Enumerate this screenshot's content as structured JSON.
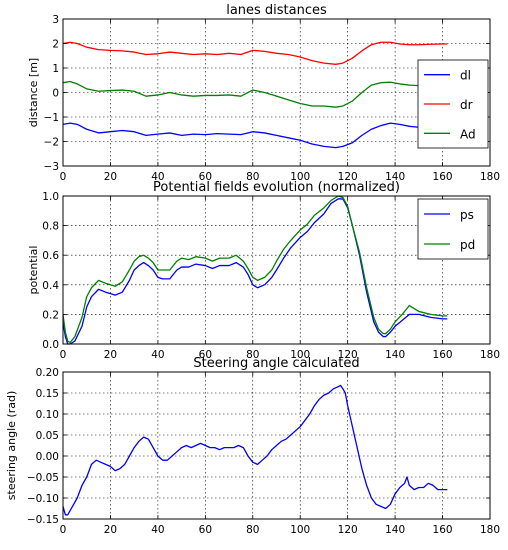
{
  "chart_data": [
    {
      "type": "line",
      "title": "lanes distances",
      "xlabel": "",
      "ylabel": "distance [m]",
      "xlim": [
        0,
        180
      ],
      "ylim": [
        -3,
        3
      ],
      "xticks": [
        0,
        20,
        40,
        60,
        80,
        100,
        120,
        140,
        160,
        180
      ],
      "yticks": [
        -3,
        -2,
        -1,
        0,
        1,
        2,
        3
      ],
      "grid": true,
      "legend": "right",
      "series": [
        {
          "name": "dl",
          "color": "#0000ff",
          "x": [
            0,
            3,
            6,
            10,
            15,
            20,
            25,
            30,
            35,
            40,
            45,
            50,
            55,
            60,
            65,
            70,
            75,
            80,
            85,
            90,
            95,
            100,
            105,
            110,
            115,
            118,
            122,
            126,
            130,
            134,
            138,
            142,
            146,
            150,
            155,
            160,
            162
          ],
          "y": [
            -1.3,
            -1.25,
            -1.3,
            -1.5,
            -1.65,
            -1.6,
            -1.55,
            -1.6,
            -1.75,
            -1.7,
            -1.65,
            -1.75,
            -1.7,
            -1.72,
            -1.68,
            -1.7,
            -1.72,
            -1.6,
            -1.65,
            -1.75,
            -1.85,
            -1.95,
            -2.1,
            -2.2,
            -2.25,
            -2.2,
            -2.05,
            -1.75,
            -1.5,
            -1.35,
            -1.25,
            -1.3,
            -1.38,
            -1.42,
            -1.4,
            -1.38,
            -1.38
          ]
        },
        {
          "name": "dr",
          "color": "#ff0000",
          "x": [
            0,
            3,
            6,
            10,
            15,
            20,
            25,
            30,
            35,
            40,
            45,
            50,
            55,
            60,
            65,
            70,
            75,
            80,
            85,
            90,
            95,
            100,
            105,
            110,
            115,
            118,
            122,
            126,
            130,
            134,
            138,
            142,
            146,
            150,
            155,
            160,
            162
          ],
          "y": [
            2.0,
            2.05,
            2.0,
            1.85,
            1.75,
            1.72,
            1.7,
            1.65,
            1.55,
            1.58,
            1.65,
            1.6,
            1.55,
            1.58,
            1.55,
            1.6,
            1.55,
            1.72,
            1.68,
            1.6,
            1.55,
            1.45,
            1.3,
            1.2,
            1.15,
            1.2,
            1.4,
            1.7,
            1.95,
            2.05,
            2.05,
            1.98,
            1.95,
            1.95,
            1.97,
            1.98,
            1.98
          ]
        },
        {
          "name": "Ad",
          "color": "#008000",
          "x": [
            0,
            3,
            6,
            10,
            15,
            20,
            25,
            30,
            35,
            40,
            45,
            50,
            55,
            60,
            65,
            70,
            75,
            80,
            85,
            90,
            95,
            100,
            105,
            110,
            115,
            118,
            122,
            126,
            130,
            134,
            138,
            142,
            146,
            150,
            155,
            160,
            162
          ],
          "y": [
            0.4,
            0.45,
            0.35,
            0.15,
            0.05,
            0.08,
            0.1,
            0.05,
            -0.15,
            -0.1,
            -0.0,
            -0.1,
            -0.15,
            -0.12,
            -0.12,
            -0.1,
            -0.15,
            0.1,
            0.0,
            -0.15,
            -0.3,
            -0.45,
            -0.55,
            -0.55,
            -0.6,
            -0.55,
            -0.35,
            0.0,
            0.3,
            0.4,
            0.42,
            0.35,
            0.3,
            0.28,
            0.3,
            0.33,
            0.33
          ]
        }
      ]
    },
    {
      "type": "line",
      "title": "Potential fields evolution (normalized)",
      "xlabel": "",
      "ylabel": "potential",
      "xlim": [
        0,
        180
      ],
      "ylim": [
        0,
        1.0
      ],
      "xticks": [
        0,
        20,
        40,
        60,
        80,
        100,
        120,
        140,
        160,
        180
      ],
      "yticks": [
        0.0,
        0.2,
        0.4,
        0.6,
        0.8,
        1.0
      ],
      "grid": true,
      "legend": "top-right",
      "series": [
        {
          "name": "ps",
          "color": "#0000ff",
          "x": [
            0,
            1,
            2,
            3,
            5,
            8,
            10,
            12,
            15,
            18,
            20,
            22,
            25,
            28,
            30,
            32,
            34,
            36,
            38,
            40,
            42,
            45,
            48,
            50,
            53,
            56,
            60,
            63,
            66,
            70,
            73,
            76,
            78,
            80,
            82,
            85,
            88,
            90,
            93,
            96,
            100,
            103,
            106,
            110,
            113,
            116,
            118,
            120,
            122,
            125,
            128,
            131,
            133,
            135,
            136,
            138,
            140,
            143,
            146,
            150,
            155,
            160,
            162
          ],
          "y": [
            0.15,
            0.05,
            0.0,
            0.0,
            0.02,
            0.12,
            0.25,
            0.32,
            0.37,
            0.35,
            0.34,
            0.33,
            0.35,
            0.43,
            0.5,
            0.53,
            0.55,
            0.53,
            0.5,
            0.45,
            0.44,
            0.44,
            0.5,
            0.52,
            0.52,
            0.54,
            0.53,
            0.51,
            0.53,
            0.53,
            0.55,
            0.52,
            0.47,
            0.4,
            0.38,
            0.4,
            0.45,
            0.5,
            0.58,
            0.65,
            0.72,
            0.76,
            0.82,
            0.88,
            0.95,
            0.98,
            0.98,
            0.92,
            0.8,
            0.6,
            0.35,
            0.15,
            0.08,
            0.05,
            0.05,
            0.08,
            0.12,
            0.16,
            0.2,
            0.2,
            0.18,
            0.17,
            0.17
          ]
        },
        {
          "name": "pd",
          "color": "#008000",
          "x": [
            0,
            1,
            2,
            3,
            5,
            8,
            10,
            12,
            15,
            18,
            20,
            22,
            25,
            28,
            30,
            32,
            34,
            36,
            38,
            40,
            42,
            45,
            48,
            50,
            53,
            56,
            60,
            63,
            66,
            70,
            73,
            76,
            78,
            80,
            82,
            85,
            88,
            90,
            93,
            96,
            100,
            103,
            106,
            110,
            113,
            116,
            118,
            120,
            122,
            125,
            128,
            131,
            133,
            135,
            136,
            138,
            140,
            143,
            146,
            150,
            155,
            160,
            162
          ],
          "y": [
            0.2,
            0.08,
            0.02,
            0.01,
            0.05,
            0.18,
            0.32,
            0.38,
            0.43,
            0.41,
            0.4,
            0.39,
            0.42,
            0.5,
            0.56,
            0.59,
            0.6,
            0.58,
            0.55,
            0.5,
            0.5,
            0.5,
            0.56,
            0.58,
            0.57,
            0.59,
            0.58,
            0.56,
            0.58,
            0.58,
            0.6,
            0.56,
            0.51,
            0.45,
            0.43,
            0.45,
            0.5,
            0.56,
            0.64,
            0.7,
            0.77,
            0.81,
            0.87,
            0.92,
            0.97,
            1.0,
            0.99,
            0.93,
            0.8,
            0.62,
            0.38,
            0.18,
            0.1,
            0.07,
            0.07,
            0.1,
            0.15,
            0.2,
            0.26,
            0.22,
            0.2,
            0.19,
            0.19
          ]
        }
      ]
    },
    {
      "type": "line",
      "title": "Steering angle calculated",
      "xlabel": "",
      "ylabel": "steering angle (rad)",
      "xlim": [
        0,
        180
      ],
      "ylim": [
        -0.15,
        0.2
      ],
      "xticks": [
        0,
        20,
        40,
        60,
        80,
        100,
        120,
        140,
        160,
        180
      ],
      "yticks": [
        -0.15,
        -0.1,
        -0.05,
        0.0,
        0.05,
        0.1,
        0.15,
        0.2
      ],
      "ytick_labels": [
        "−0.15",
        "−0.10",
        "−0.05",
        "0.00",
        "0.05",
        "0.10",
        "0.15",
        "0.20"
      ],
      "grid": true,
      "legend": "",
      "series": [
        {
          "name": "",
          "color": "#0000ff",
          "x": [
            0,
            1,
            2,
            4,
            6,
            8,
            10,
            12,
            14,
            16,
            18,
            20,
            22,
            24,
            26,
            28,
            30,
            32,
            34,
            36,
            38,
            40,
            42,
            44,
            46,
            48,
            50,
            52,
            54,
            56,
            58,
            60,
            62,
            64,
            66,
            68,
            70,
            72,
            74,
            76,
            78,
            80,
            82,
            84,
            86,
            88,
            90,
            92,
            94,
            96,
            98,
            100,
            102,
            104,
            106,
            108,
            110,
            112,
            114,
            116,
            117,
            118,
            119,
            120,
            122,
            124,
            126,
            128,
            130,
            132,
            134,
            136,
            138,
            140,
            142,
            144,
            145,
            146,
            148,
            150,
            152,
            154,
            156,
            158,
            160,
            162
          ],
          "y": [
            -0.12,
            -0.14,
            -0.14,
            -0.12,
            -0.1,
            -0.07,
            -0.05,
            -0.02,
            -0.01,
            -0.015,
            -0.02,
            -0.025,
            -0.035,
            -0.03,
            -0.02,
            0.0,
            0.02,
            0.035,
            0.045,
            0.04,
            0.02,
            0.0,
            -0.01,
            -0.01,
            0.0,
            0.01,
            0.02,
            0.025,
            0.02,
            0.025,
            0.03,
            0.025,
            0.02,
            0.02,
            0.015,
            0.02,
            0.02,
            0.02,
            0.025,
            0.02,
            0.0,
            -0.015,
            -0.02,
            -0.01,
            0.0,
            0.015,
            0.025,
            0.035,
            0.04,
            0.05,
            0.06,
            0.07,
            0.085,
            0.1,
            0.12,
            0.135,
            0.145,
            0.15,
            0.16,
            0.165,
            0.168,
            0.16,
            0.15,
            0.12,
            0.07,
            0.02,
            -0.03,
            -0.07,
            -0.1,
            -0.115,
            -0.12,
            -0.125,
            -0.115,
            -0.09,
            -0.075,
            -0.065,
            -0.05,
            -0.07,
            -0.08,
            -0.075,
            -0.075,
            -0.065,
            -0.07,
            -0.08,
            -0.08,
            -0.08
          ]
        }
      ]
    }
  ]
}
